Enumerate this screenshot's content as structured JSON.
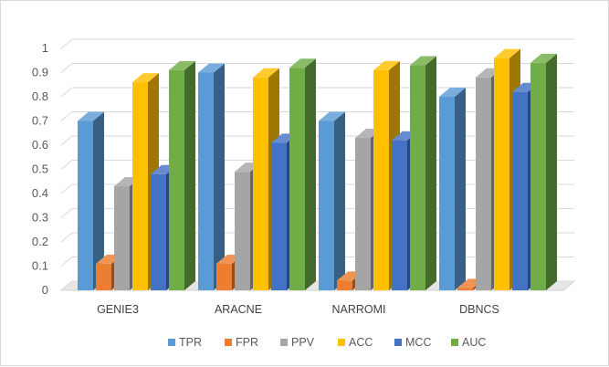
{
  "chart_data": {
    "type": "bar",
    "style": "3d-clustered-column",
    "categories": [
      "GENIE3",
      "ARACNE",
      "NARROMI",
      "DBNCS"
    ],
    "series": [
      {
        "name": "TPR",
        "color": "#5b9bd5",
        "values": [
          0.7,
          0.9,
          0.7,
          0.8
        ]
      },
      {
        "name": "FPR",
        "color": "#ed7d31",
        "values": [
          0.11,
          0.11,
          0.04,
          0.01
        ]
      },
      {
        "name": "PPV",
        "color": "#a5a5a5",
        "values": [
          0.43,
          0.49,
          0.63,
          0.88
        ]
      },
      {
        "name": "ACC",
        "color": "#ffc000",
        "values": [
          0.86,
          0.88,
          0.91,
          0.96
        ]
      },
      {
        "name": "MCC",
        "color": "#4472c4",
        "values": [
          0.48,
          0.61,
          0.62,
          0.82
        ]
      },
      {
        "name": "AUC",
        "color": "#70ad47",
        "values": [
          0.91,
          0.92,
          0.93,
          0.94
        ]
      }
    ],
    "yticks": [
      "0",
      "0.1",
      "0.2",
      "0.3",
      "0.4",
      "0.5",
      "0.6",
      "0.7",
      "0.8",
      "0.9",
      "1"
    ],
    "ylim": [
      0,
      1
    ],
    "grid": true,
    "legend": "bottom"
  }
}
